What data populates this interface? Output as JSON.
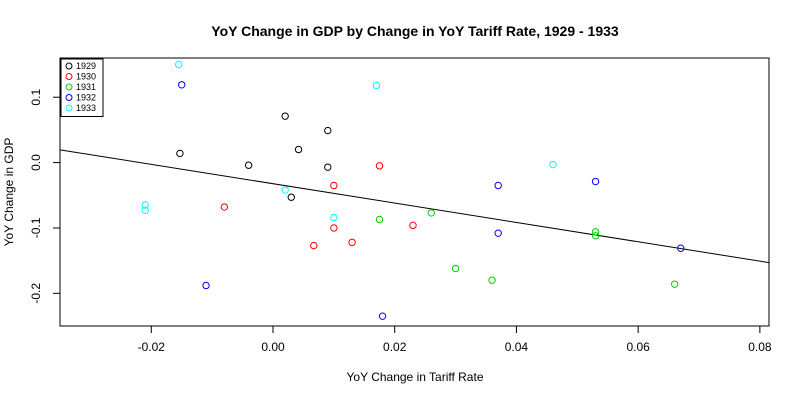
{
  "chart_data": {
    "type": "scatter",
    "title": "YoY Change in GDP by Change in YoY Tariff Rate,  1929 - 1933",
    "xlabel": "YoY Change in Tariff Rate",
    "ylabel": "YoY Change in GDP",
    "xlim": [
      -0.035,
      0.0815
    ],
    "ylim": [
      -0.25,
      0.16
    ],
    "xticks": [
      -0.02,
      0.0,
      0.02,
      0.04,
      0.06,
      0.08
    ],
    "xtick_labels": [
      "-0.02",
      "0.00",
      "0.02",
      "0.04",
      "0.06",
      "0.08"
    ],
    "yticks": [
      -0.2,
      -0.1,
      0.0,
      0.1
    ],
    "ytick_labels": [
      "-0.2",
      "-0.1",
      "0.0",
      "0.1"
    ],
    "grid": false,
    "legend_position": "top-left",
    "series": [
      {
        "name": "1929",
        "color": "#000000",
        "points": [
          [
            -0.0153,
            0.014
          ],
          [
            -0.004,
            -0.004
          ],
          [
            0.002,
            0.071
          ],
          [
            0.003,
            -0.053
          ],
          [
            0.0042,
            0.02
          ],
          [
            0.009,
            0.049
          ],
          [
            0.009,
            -0.007
          ]
        ]
      },
      {
        "name": "1930",
        "color": "#ff0000",
        "points": [
          [
            -0.008,
            -0.068
          ],
          [
            0.0067,
            -0.127
          ],
          [
            0.01,
            -0.035
          ],
          [
            0.01,
            -0.1
          ],
          [
            0.013,
            -0.122
          ],
          [
            0.0175,
            -0.005
          ],
          [
            0.023,
            -0.096
          ]
        ]
      },
      {
        "name": "1931",
        "color": "#00cd00",
        "points": [
          [
            0.0175,
            -0.087
          ],
          [
            0.026,
            -0.077
          ],
          [
            0.03,
            -0.162
          ],
          [
            0.036,
            -0.18
          ],
          [
            0.053,
            -0.106
          ],
          [
            0.053,
            -0.112
          ],
          [
            0.066,
            -0.186
          ]
        ]
      },
      {
        "name": "1932",
        "color": "#0000ff",
        "points": [
          [
            -0.015,
            0.119
          ],
          [
            -0.011,
            -0.188
          ],
          [
            0.018,
            -0.235
          ],
          [
            0.037,
            -0.035
          ],
          [
            0.037,
            -0.108
          ],
          [
            0.053,
            -0.029
          ],
          [
            0.067,
            -0.131
          ]
        ]
      },
      {
        "name": "1933",
        "color": "#00ffff",
        "points": [
          [
            -0.021,
            -0.065
          ],
          [
            -0.021,
            -0.073
          ],
          [
            -0.0155,
            0.15
          ],
          [
            0.002,
            -0.042
          ],
          [
            0.01,
            -0.084
          ],
          [
            0.017,
            0.118
          ],
          [
            0.046,
            -0.003
          ]
        ]
      }
    ],
    "fit_line": {
      "color": "#000000",
      "points": [
        [
          -0.035,
          0.0195
        ],
        [
          0.0815,
          -0.153
        ]
      ]
    }
  }
}
